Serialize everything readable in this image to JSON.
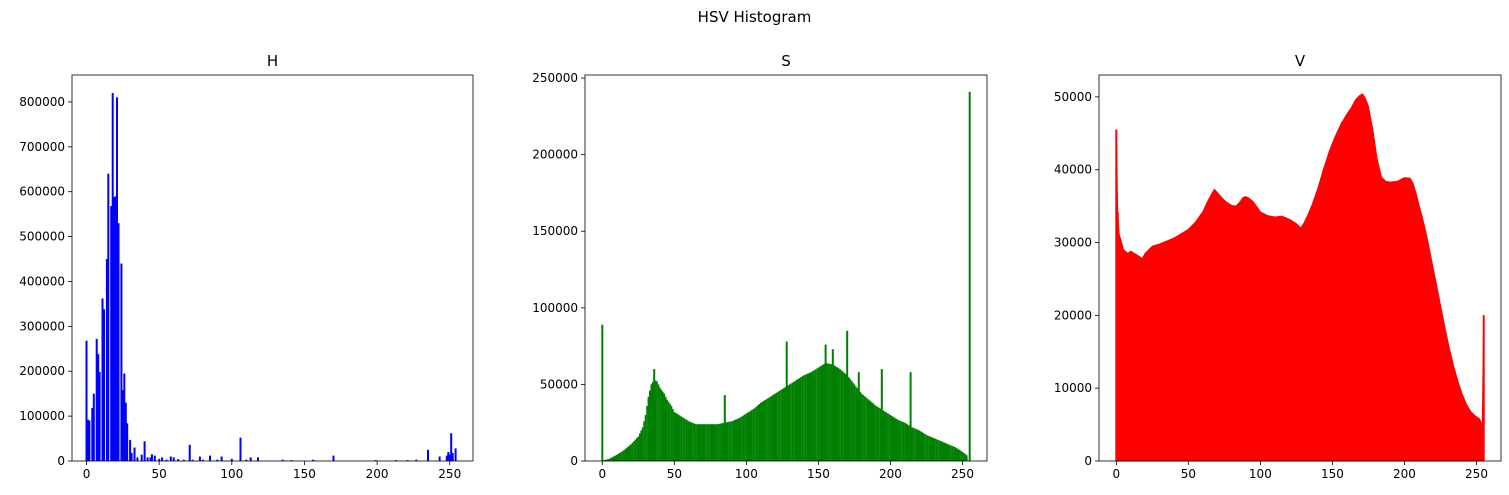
{
  "figure": {
    "suptitle": "HSV Histogram"
  },
  "chart_data": [
    {
      "type": "bar",
      "title": "H",
      "color": "#0000ff",
      "xlim": [
        -10,
        266
      ],
      "ylim": [
        0,
        860000
      ],
      "xticks": [
        "0",
        "50",
        "100",
        "150",
        "200",
        "250"
      ],
      "yticks": [
        "0",
        "100000",
        "200000",
        "300000",
        "400000",
        "500000",
        "600000",
        "700000",
        "800000"
      ],
      "points": [
        [
          0,
          268000
        ],
        [
          1,
          92000
        ],
        [
          2,
          90000
        ],
        [
          4,
          118000
        ],
        [
          5,
          150000
        ],
        [
          7,
          272000
        ],
        [
          8,
          238000
        ],
        [
          9,
          198000
        ],
        [
          11,
          362000
        ],
        [
          12,
          338000
        ],
        [
          14,
          450000
        ],
        [
          15,
          640000
        ],
        [
          17,
          568000
        ],
        [
          18,
          820000
        ],
        [
          19,
          588000
        ],
        [
          20,
          590000
        ],
        [
          21,
          810000
        ],
        [
          22,
          530000
        ],
        [
          24,
          440000
        ],
        [
          25,
          158000
        ],
        [
          26,
          195000
        ],
        [
          27,
          130000
        ],
        [
          28,
          84000
        ],
        [
          30,
          47000
        ],
        [
          31,
          18000
        ],
        [
          33,
          30000
        ],
        [
          35,
          8000
        ],
        [
          38,
          14000
        ],
        [
          40,
          44000
        ],
        [
          42,
          8000
        ],
        [
          44,
          8000
        ],
        [
          45,
          15000
        ],
        [
          47,
          12000
        ],
        [
          50,
          5000
        ],
        [
          52,
          8000
        ],
        [
          55,
          3000
        ],
        [
          58,
          10000
        ],
        [
          60,
          8000
        ],
        [
          63,
          4000
        ],
        [
          67,
          3000
        ],
        [
          71,
          36000
        ],
        [
          73,
          3000
        ],
        [
          78,
          10000
        ],
        [
          80,
          3000
        ],
        [
          85,
          12000
        ],
        [
          90,
          3000
        ],
        [
          93,
          10000
        ],
        [
          100,
          5000
        ],
        [
          106,
          52000
        ],
        [
          110,
          3000
        ],
        [
          113,
          8000
        ],
        [
          118,
          8000
        ],
        [
          135,
          3000
        ],
        [
          141,
          2000
        ],
        [
          156,
          3000
        ],
        [
          170,
          12000
        ],
        [
          199,
          2000
        ],
        [
          213,
          2000
        ],
        [
          221,
          2000
        ],
        [
          227,
          3000
        ],
        [
          235,
          25000
        ],
        [
          243,
          10000
        ],
        [
          248,
          12000
        ],
        [
          249,
          20000
        ],
        [
          250,
          15000
        ],
        [
          251,
          62000
        ],
        [
          252,
          18000
        ],
        [
          254,
          28000
        ]
      ]
    },
    {
      "type": "bar",
      "title": "S",
      "color": "#008000",
      "xlim": [
        -12,
        267
      ],
      "ylim": [
        0,
        252000
      ],
      "xticks": [
        "0",
        "50",
        "100",
        "150",
        "200",
        "250"
      ],
      "yticks": [
        "0",
        "50000",
        "100000",
        "150000",
        "200000",
        "250000"
      ],
      "spikes": [
        [
          0,
          89000
        ],
        [
          36,
          60000
        ],
        [
          85,
          43000
        ],
        [
          128,
          78000
        ],
        [
          155,
          76000
        ],
        [
          160,
          73000
        ],
        [
          170,
          85000
        ],
        [
          178,
          58000
        ],
        [
          194,
          60000
        ],
        [
          214,
          58000
        ],
        [
          255,
          241000
        ]
      ],
      "envelope": [
        [
          1,
          500
        ],
        [
          5,
          1500
        ],
        [
          10,
          4000
        ],
        [
          15,
          7000
        ],
        [
          20,
          11000
        ],
        [
          25,
          16000
        ],
        [
          28,
          22000
        ],
        [
          30,
          30000
        ],
        [
          32,
          42000
        ],
        [
          34,
          50000
        ],
        [
          36,
          53000
        ],
        [
          38,
          52000
        ],
        [
          40,
          48000
        ],
        [
          43,
          44000
        ],
        [
          45,
          40000
        ],
        [
          48,
          36000
        ],
        [
          50,
          32000
        ],
        [
          55,
          29000
        ],
        [
          60,
          26000
        ],
        [
          65,
          24000
        ],
        [
          70,
          24000
        ],
        [
          75,
          24000
        ],
        [
          80,
          24000
        ],
        [
          85,
          25000
        ],
        [
          90,
          26000
        ],
        [
          95,
          28000
        ],
        [
          100,
          31000
        ],
        [
          105,
          34000
        ],
        [
          110,
          38000
        ],
        [
          115,
          41000
        ],
        [
          120,
          44000
        ],
        [
          125,
          47000
        ],
        [
          130,
          50000
        ],
        [
          135,
          53000
        ],
        [
          140,
          56000
        ],
        [
          145,
          58000
        ],
        [
          150,
          61000
        ],
        [
          155,
          64000
        ],
        [
          160,
          63000
        ],
        [
          165,
          60000
        ],
        [
          170,
          56000
        ],
        [
          175,
          50000
        ],
        [
          180,
          44000
        ],
        [
          185,
          40000
        ],
        [
          190,
          36000
        ],
        [
          195,
          33000
        ],
        [
          200,
          30000
        ],
        [
          205,
          27000
        ],
        [
          210,
          25000
        ],
        [
          215,
          22000
        ],
        [
          220,
          20000
        ],
        [
          225,
          17000
        ],
        [
          230,
          15000
        ],
        [
          235,
          13000
        ],
        [
          240,
          11000
        ],
        [
          245,
          9000
        ],
        [
          250,
          6000
        ],
        [
          254,
          3000
        ]
      ]
    },
    {
      "type": "area",
      "title": "V",
      "color": "#ff0000",
      "xlim": [
        -12,
        267
      ],
      "ylim": [
        0,
        53000
      ],
      "xticks": [
        "0",
        "50",
        "100",
        "150",
        "200",
        "250"
      ],
      "yticks": [
        "0",
        "10000",
        "20000",
        "30000",
        "40000",
        "50000"
      ],
      "spikes": [
        [
          0,
          45500
        ],
        [
          1,
          34200
        ],
        [
          2,
          31000
        ],
        [
          255,
          20000
        ]
      ],
      "values": [
        [
          0,
          45500
        ],
        [
          1,
          34200
        ],
        [
          2,
          31000
        ],
        [
          3,
          30500
        ],
        [
          5,
          29000
        ],
        [
          8,
          28500
        ],
        [
          10,
          28800
        ],
        [
          15,
          28200
        ],
        [
          18,
          27800
        ],
        [
          20,
          28500
        ],
        [
          25,
          29500
        ],
        [
          30,
          29800
        ],
        [
          35,
          30200
        ],
        [
          40,
          30600
        ],
        [
          45,
          31200
        ],
        [
          50,
          31800
        ],
        [
          55,
          32800
        ],
        [
          60,
          34200
        ],
        [
          63,
          35500
        ],
        [
          66,
          36600
        ],
        [
          68,
          37300
        ],
        [
          70,
          36900
        ],
        [
          73,
          36200
        ],
        [
          76,
          35600
        ],
        [
          80,
          35100
        ],
        [
          83,
          35000
        ],
        [
          86,
          35600
        ],
        [
          88,
          36200
        ],
        [
          90,
          36300
        ],
        [
          92,
          36100
        ],
        [
          95,
          35600
        ],
        [
          98,
          34800
        ],
        [
          100,
          34200
        ],
        [
          105,
          33700
        ],
        [
          110,
          33500
        ],
        [
          115,
          33600
        ],
        [
          120,
          33200
        ],
        [
          125,
          32600
        ],
        [
          128,
          32000
        ],
        [
          130,
          32600
        ],
        [
          133,
          33800
        ],
        [
          136,
          35200
        ],
        [
          140,
          37500
        ],
        [
          144,
          40200
        ],
        [
          148,
          42600
        ],
        [
          152,
          44600
        ],
        [
          156,
          46300
        ],
        [
          160,
          47600
        ],
        [
          163,
          48500
        ],
        [
          166,
          49600
        ],
        [
          169,
          50200
        ],
        [
          171,
          50400
        ],
        [
          173,
          49700
        ],
        [
          175,
          48700
        ],
        [
          178,
          45500
        ],
        [
          181,
          41500
        ],
        [
          184,
          39000
        ],
        [
          187,
          38400
        ],
        [
          190,
          38300
        ],
        [
          195,
          38400
        ],
        [
          200,
          38900
        ],
        [
          204,
          38800
        ],
        [
          206,
          38100
        ],
        [
          208,
          36800
        ],
        [
          210,
          35200
        ],
        [
          213,
          33000
        ],
        [
          216,
          30400
        ],
        [
          219,
          27400
        ],
        [
          222,
          24400
        ],
        [
          225,
          21400
        ],
        [
          228,
          18400
        ],
        [
          231,
          15600
        ],
        [
          234,
          13100
        ],
        [
          237,
          11000
        ],
        [
          240,
          9200
        ],
        [
          243,
          7800
        ],
        [
          246,
          6800
        ],
        [
          249,
          6200
        ],
        [
          252,
          5800
        ],
        [
          254,
          5000
        ],
        [
          255,
          20000
        ]
      ]
    }
  ]
}
